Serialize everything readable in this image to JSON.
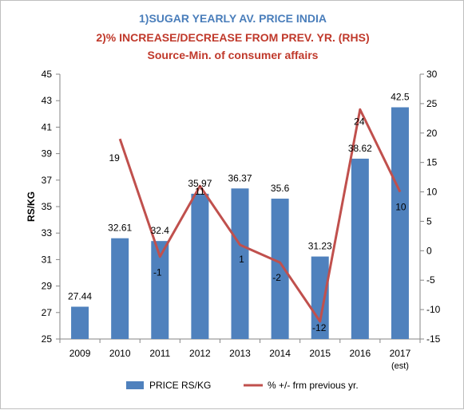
{
  "chart_data": {
    "type": "bar+line",
    "title": [
      "1)SUGAR YEARLY AV. PRICE INDIA",
      "2)% INCREASE/DECREASE FROM PREV. YR. (RHS)",
      "Source-Min. of consumer affairs"
    ],
    "categories": [
      "2009",
      "2010",
      "2011",
      "2012",
      "2013",
      "2014",
      "2015",
      "2016",
      "2017"
    ],
    "category_sub": [
      "",
      "",
      "",
      "",
      "",
      "",
      "",
      "",
      "(est)"
    ],
    "ylabel": "RS/KG",
    "ylim": [
      25,
      45
    ],
    "y_ticks": [
      "25",
      "27",
      "29",
      "31",
      "33",
      "35",
      "37",
      "39",
      "41",
      "43",
      "45"
    ],
    "y2lim": [
      -15,
      30
    ],
    "y2_ticks": [
      "-15",
      "-10",
      "-5",
      "0",
      "5",
      "10",
      "15",
      "20",
      "25",
      "30"
    ],
    "series": [
      {
        "name": "PRICE RS/KG",
        "type": "bar",
        "color": "#4f81bd",
        "values": [
          27.44,
          32.61,
          32.4,
          35.97,
          36.37,
          35.6,
          31.23,
          38.62,
          42.5
        ],
        "labels": [
          "27.44",
          "32.61",
          "32.4",
          "35.97",
          "36.37",
          "35.6",
          "31.23",
          "38.62",
          "42.5"
        ]
      },
      {
        "name": "% +/- frm previous yr.",
        "type": "line",
        "axis": "right",
        "color": "#c0504d",
        "values": [
          null,
          19,
          -1,
          11,
          1,
          -2,
          -12,
          24,
          10
        ],
        "labels": [
          "",
          "19",
          "-1",
          "11",
          "1",
          "-2",
          "-12",
          "24",
          "10"
        ]
      }
    ],
    "legend_position": "bottom",
    "grid": false
  }
}
